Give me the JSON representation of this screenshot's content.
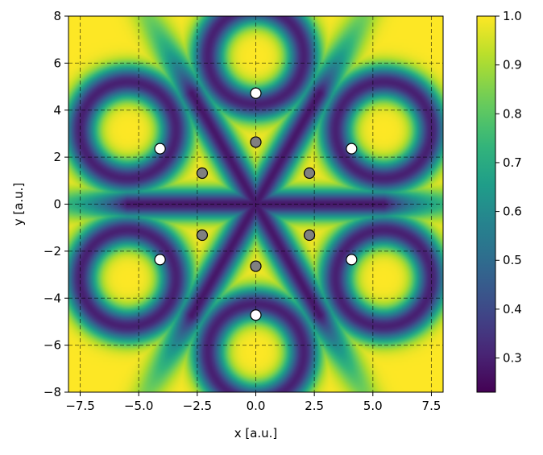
{
  "chart_data": {
    "type": "heatmap",
    "title": "",
    "xlabel": "x [a.u.]",
    "ylabel": "y [a.u.]",
    "xlim": [
      -8,
      8
    ],
    "ylim": [
      -8,
      8
    ],
    "grid": true,
    "x_ticks": [
      -7.5,
      -5.0,
      -2.5,
      0.0,
      2.5,
      5.0,
      7.5
    ],
    "x_tick_labels": [
      "−7.5",
      "−5.0",
      "−2.5",
      "0.0",
      "2.5",
      "5.0",
      "7.5"
    ],
    "y_ticks": [
      -8,
      -6,
      -4,
      -2,
      0,
      2,
      4,
      6,
      8
    ],
    "y_tick_labels": [
      "−8",
      "−6",
      "−4",
      "−2",
      "0",
      "2",
      "4",
      "6",
      "8"
    ],
    "colorbar": {
      "colormap": "viridis",
      "range": [
        0.23,
        1.0
      ],
      "ticks": [
        0.3,
        0.4,
        0.5,
        0.6,
        0.7,
        0.8,
        0.9,
        1.0
      ],
      "tick_labels": [
        "0.3",
        "0.4",
        "0.5",
        "0.6",
        "0.7",
        "0.8",
        "0.9",
        "1.0"
      ]
    },
    "scatter_series": [
      {
        "marker_color": "#ffffff",
        "points": [
          [
            0.0,
            4.72
          ],
          [
            0.0,
            -4.72
          ],
          [
            4.09,
            2.36
          ],
          [
            -4.09,
            2.36
          ],
          [
            4.09,
            -2.36
          ],
          [
            -4.09,
            -2.36
          ]
        ]
      },
      {
        "marker_color": "#808080",
        "points": [
          [
            0.0,
            2.64
          ],
          [
            0.0,
            -2.64
          ],
          [
            2.29,
            1.32
          ],
          [
            -2.29,
            1.32
          ],
          [
            2.29,
            -1.32
          ],
          [
            -2.29,
            -1.32
          ]
        ]
      }
    ]
  }
}
